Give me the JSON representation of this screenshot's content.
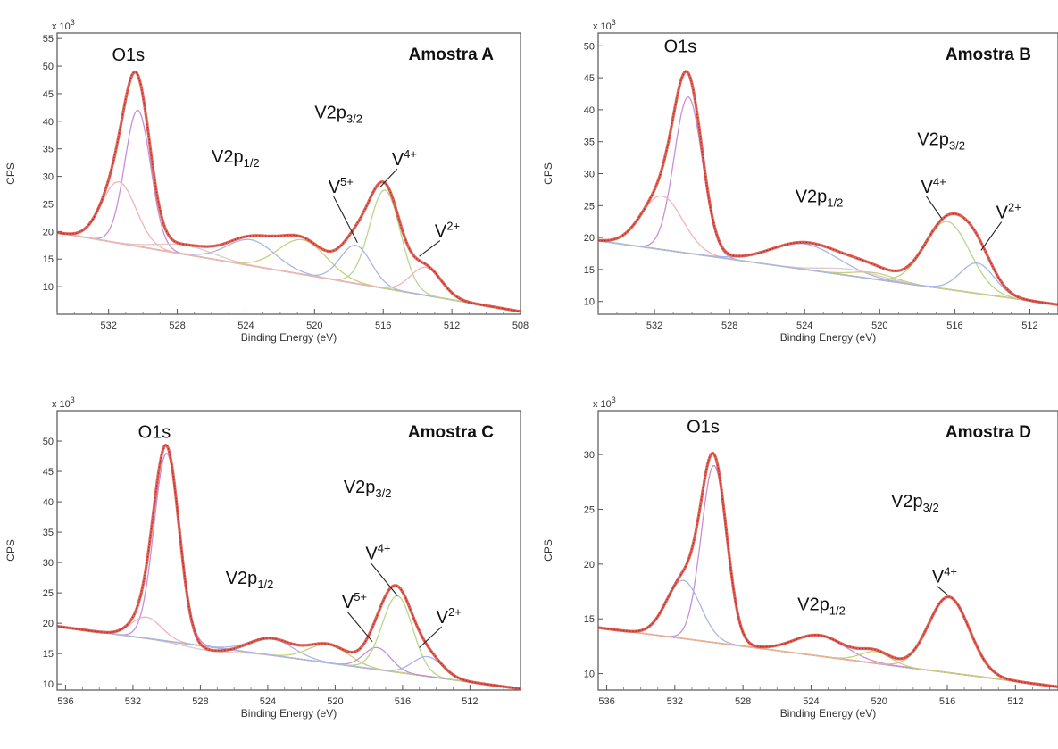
{
  "chart_data": [
    {
      "type": "line",
      "sample": "Amostra A",
      "xlabel": "Binding Energy (eV)",
      "ylabel": "CPS",
      "y_scale_label": "x 10",
      "y_scale_exp": "3",
      "xlim": [
        535,
        508
      ],
      "ylim": [
        5,
        56
      ],
      "x_ticks": [
        532,
        528,
        524,
        520,
        516,
        512,
        508
      ],
      "y_ticks": [
        10,
        15,
        20,
        25,
        30,
        35,
        40,
        45,
        50,
        55
      ],
      "background": {
        "x": [
          535,
          508
        ],
        "y": [
          19.8,
          5.5
        ]
      },
      "components": [
        {
          "center": 530.3,
          "height": 42,
          "width": 0.75,
          "color": "#c98fd6"
        },
        {
          "center": 531.4,
          "height": 29,
          "width": 1.0,
          "color": "#f2b3b9"
        },
        {
          "center": 527.5,
          "height": 17.5,
          "width": 1.6,
          "color": "#e3c8c8"
        },
        {
          "center": 523.7,
          "height": 18.5,
          "width": 1.4,
          "color": "#a9b6e8"
        },
        {
          "center": 520.7,
          "height": 18.5,
          "width": 1.4,
          "color": "#c7cf7a"
        },
        {
          "center": 517.6,
          "height": 17.5,
          "width": 0.9,
          "color": "#a9b6e8"
        },
        {
          "center": 515.9,
          "height": 27.5,
          "width": 0.9,
          "color": "#b7d78a"
        },
        {
          "center": 513.5,
          "height": 13.5,
          "width": 0.9,
          "color": "#f2b3b9"
        }
      ],
      "annotations": [
        {
          "text": "O1s",
          "x": 531.8,
          "y": 51
        },
        {
          "text": "V2p",
          "sub": "1/2",
          "x": 526.0,
          "y": 32.5
        },
        {
          "text": "V2p",
          "sub": "3/2",
          "x": 520.0,
          "y": 40.5
        },
        {
          "text": "V",
          "sup": "5+",
          "x": 519.2,
          "y": 27,
          "line_to": [
            517.5,
            18
          ]
        },
        {
          "text": "V",
          "sup": "4+",
          "x": 515.5,
          "y": 32,
          "line_to": [
            516.2,
            28
          ]
        },
        {
          "text": "V",
          "sup": "2+",
          "x": 513.0,
          "y": 19,
          "line_to": [
            513.9,
            15.5
          ]
        }
      ]
    },
    {
      "type": "line",
      "sample": "Amostra B",
      "xlabel": "Binding Energy (eV)",
      "ylabel": "CPS",
      "y_scale_label": "x 10",
      "y_scale_exp": "3",
      "xlim": [
        535,
        510.5
      ],
      "ylim": [
        8,
        52
      ],
      "x_ticks": [
        532,
        528,
        524,
        520,
        516,
        512
      ],
      "y_ticks": [
        10,
        15,
        20,
        25,
        30,
        35,
        40,
        45,
        50
      ],
      "background": {
        "x": [
          535,
          510.5
        ],
        "y": [
          19.5,
          9.5
        ]
      },
      "components": [
        {
          "center": 530.2,
          "height": 42,
          "width": 0.75,
          "color": "#c98fd6"
        },
        {
          "center": 531.6,
          "height": 26.5,
          "width": 1.1,
          "color": "#f2b3b9"
        },
        {
          "center": 524.0,
          "height": 19,
          "width": 1.8,
          "color": "#a9b6e8"
        },
        {
          "center": 521.5,
          "height": 15,
          "width": 1.5,
          "color": "#e3c8c8"
        },
        {
          "center": 520.3,
          "height": 14.5,
          "width": 1.1,
          "color": "#c7cf7a"
        },
        {
          "center": 516.4,
          "height": 22.5,
          "width": 1.2,
          "color": "#b7d78a"
        },
        {
          "center": 514.8,
          "height": 16,
          "width": 0.9,
          "color": "#a9b6e8"
        }
      ],
      "annotations": [
        {
          "text": "O1s",
          "x": 531.5,
          "y": 49
        },
        {
          "text": "V2p",
          "sub": "1/2",
          "x": 524.5,
          "y": 25.5
        },
        {
          "text": "V2p",
          "sub": "3/2",
          "x": 518.0,
          "y": 34.5
        },
        {
          "text": "V",
          "sup": "4+",
          "x": 517.8,
          "y": 27,
          "line_to": [
            516.7,
            23
          ]
        },
        {
          "text": "V",
          "sup": "2+",
          "x": 513.8,
          "y": 23,
          "line_to": [
            514.6,
            18
          ]
        }
      ]
    },
    {
      "type": "line",
      "sample": "Amostra C",
      "xlabel": "Binding Energy (eV)",
      "ylabel": "CPS",
      "y_scale_label": "x 10",
      "y_scale_exp": "3",
      "xlim": [
        536.5,
        509
      ],
      "ylim": [
        9,
        55
      ],
      "x_ticks": [
        536,
        532,
        528,
        524,
        520,
        516,
        512
      ],
      "y_ticks": [
        10,
        15,
        20,
        25,
        30,
        35,
        40,
        45,
        50
      ],
      "background": {
        "x": [
          536.5,
          509
        ],
        "y": [
          19.5,
          9.2
        ]
      },
      "components": [
        {
          "center": 530.0,
          "height": 48,
          "width": 0.75,
          "color": "#c98fd6"
        },
        {
          "center": 531.2,
          "height": 21,
          "width": 0.9,
          "color": "#f2b3b9"
        },
        {
          "center": 527.5,
          "height": 15.5,
          "width": 1.5,
          "color": "#e3c8c8"
        },
        {
          "center": 523.8,
          "height": 17.5,
          "width": 1.3,
          "color": "#a9b6e8"
        },
        {
          "center": 520.4,
          "height": 16.5,
          "width": 1.2,
          "color": "#c7cf7a"
        },
        {
          "center": 517.5,
          "height": 16,
          "width": 0.8,
          "color": "#c98fd6"
        },
        {
          "center": 516.3,
          "height": 24.5,
          "width": 0.9,
          "color": "#b7d78a"
        },
        {
          "center": 514.5,
          "height": 14.5,
          "width": 0.9,
          "color": "#a9b6e8"
        }
      ],
      "annotations": [
        {
          "text": "O1s",
          "x": 531.7,
          "y": 50.5
        },
        {
          "text": "V2p",
          "sub": "1/2",
          "x": 526.5,
          "y": 26.5
        },
        {
          "text": "V2p",
          "sub": "3/2",
          "x": 519.5,
          "y": 41.5
        },
        {
          "text": "V",
          "sup": "5+",
          "x": 519.6,
          "y": 22.5,
          "line_to": [
            517.8,
            17
          ]
        },
        {
          "text": "V",
          "sup": "4+",
          "x": 518.2,
          "y": 30.5,
          "line_to": [
            516.3,
            24.5
          ]
        },
        {
          "text": "V",
          "sup": "2+",
          "x": 514.0,
          "y": 20,
          "line_to": [
            515.0,
            16
          ]
        }
      ]
    },
    {
      "type": "line",
      "sample": "Amostra D",
      "xlabel": "Binding Energy (eV)",
      "ylabel": "CPS",
      "y_scale_label": "x 10",
      "y_scale_exp": "3",
      "xlim": [
        536.5,
        509.5
      ],
      "ylim": [
        8.5,
        34
      ],
      "x_ticks": [
        536,
        532,
        528,
        524,
        520,
        516,
        512
      ],
      "y_ticks": [
        10,
        15,
        20,
        25,
        30
      ],
      "background": {
        "x": [
          536.5,
          509.5
        ],
        "y": [
          14.2,
          8.8
        ]
      },
      "components": [
        {
          "center": 529.7,
          "height": 29,
          "width": 0.75,
          "color": "#c98fd6"
        },
        {
          "center": 531.5,
          "height": 18.5,
          "width": 1.0,
          "color": "#a9b6e8"
        },
        {
          "center": 523.5,
          "height": 13.5,
          "width": 1.5,
          "color": "#c98fd6"
        },
        {
          "center": 520.2,
          "height": 12,
          "width": 0.9,
          "color": "#c7cf7a"
        },
        {
          "center": 515.9,
          "height": 17,
          "width": 1.2,
          "color": "#f0b090"
        }
      ],
      "annotations": [
        {
          "text": "O1s",
          "x": 531.3,
          "y": 32
        },
        {
          "text": "V2p",
          "sub": "1/2",
          "x": 524.8,
          "y": 15.8
        },
        {
          "text": "V2p",
          "sub": "3/2",
          "x": 519.3,
          "y": 25.2
        },
        {
          "text": "V",
          "sup": "4+",
          "x": 516.9,
          "y": 18.3,
          "line_to": [
            516.0,
            17.2
          ]
        }
      ]
    }
  ]
}
